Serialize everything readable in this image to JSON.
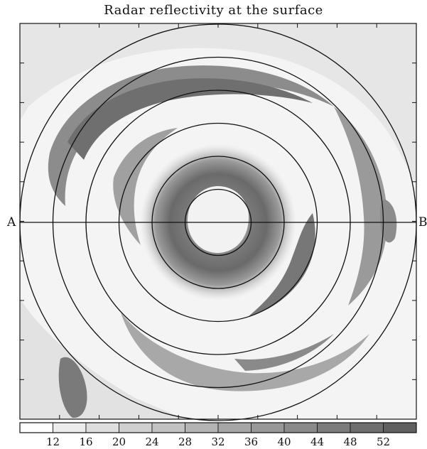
{
  "chart_data": {
    "type": "heatmap",
    "title": "Radar reflectivity at the surface",
    "cross_section": {
      "start_label": "A",
      "end_label": "B"
    },
    "range_rings": {
      "count": 6
    },
    "colorbar": {
      "tick_labels": [
        "12",
        "16",
        "20",
        "24",
        "28",
        "32",
        "36",
        "40",
        "44",
        "48",
        "52"
      ],
      "levels": [
        8,
        12,
        16,
        20,
        24,
        28,
        32,
        36,
        40,
        44,
        48,
        52,
        56
      ],
      "colors": [
        "#ffffff",
        "#ececec",
        "#dedede",
        "#d0d0d0",
        "#c2c2c2",
        "#b4b4b4",
        "#a6a6a6",
        "#989898",
        "#8a8a8a",
        "#7c7c7c",
        "#6e6e6e",
        "#606060"
      ]
    },
    "pattern": {
      "eye": "clear, low reflectivity at center",
      "eyewall_peak": 48,
      "outer_bands": "spiral rainbands of 28-44"
    }
  }
}
